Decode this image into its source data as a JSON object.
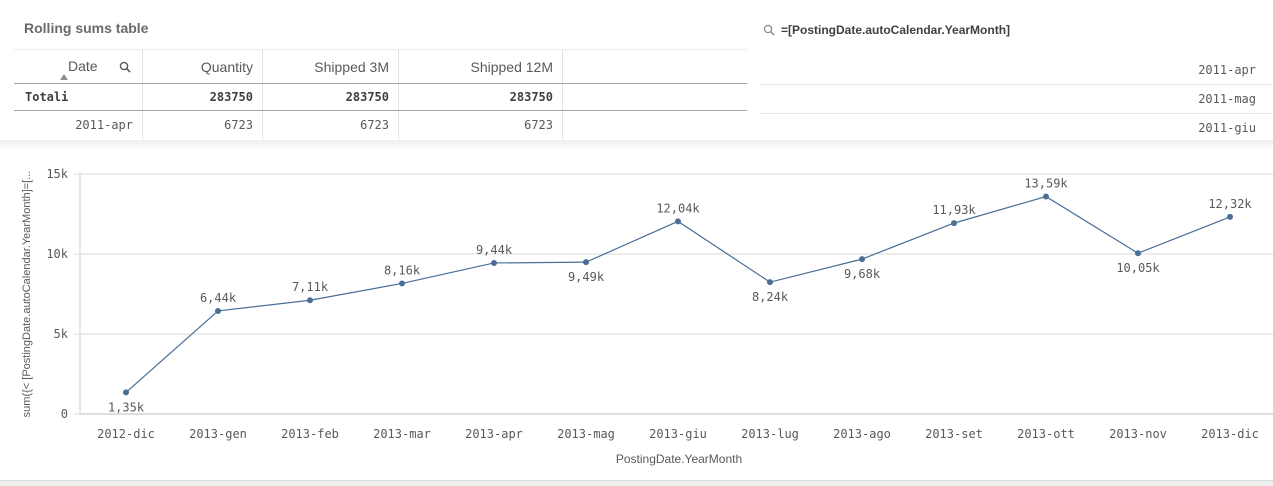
{
  "table": {
    "title": "Rolling sums table",
    "headers": [
      "Date",
      "Quantity",
      "Shipped 3M",
      "Shipped 12M"
    ],
    "totals": [
      "Totali",
      "283750",
      "283750",
      "283750"
    ],
    "row": [
      "2011-apr",
      "6723",
      "6723",
      "6723"
    ]
  },
  "filter": {
    "title": "=[PostingDate.autoCalendar.YearMonth]",
    "items": [
      "2011-apr",
      "2011-mag",
      "2011-giu"
    ]
  },
  "colors": {
    "line": "#4a6e96",
    "grid": "#d9d9d9",
    "text": "#595959"
  },
  "icons": {
    "search": "magnifier-icon",
    "sort": "sort-asc-icon"
  },
  "chart_data": {
    "type": "line",
    "title": "",
    "xlabel": "PostingDate.YearMonth",
    "ylabel": "sum({< [PostingDate.autoCalendar.YearMonth]=[...",
    "ylim": [
      0,
      15000
    ],
    "yticks": [
      0,
      5000,
      10000,
      15000
    ],
    "ytick_labels": [
      "0",
      "5k",
      "10k",
      "15k"
    ],
    "grid": true,
    "categories": [
      "2012-dic",
      "2013-gen",
      "2013-feb",
      "2013-mar",
      "2013-apr",
      "2013-mag",
      "2013-giu",
      "2013-lug",
      "2013-ago",
      "2013-set",
      "2013-ott",
      "2013-nov",
      "2013-dic"
    ],
    "series": [
      {
        "values": [
          1350,
          6440,
          7110,
          8160,
          9440,
          9490,
          12040,
          8240,
          9680,
          11930,
          13590,
          10050,
          12320
        ],
        "labels": [
          "1,35k",
          "6,44k",
          "7,11k",
          "8,16k",
          "9,44k",
          "9,49k",
          "12,04k",
          "8,24k",
          "9,68k",
          "11,93k",
          "13,59k",
          "10,05k",
          "12,32k"
        ],
        "label_pos": [
          "below",
          "above",
          "above",
          "above",
          "above",
          "below",
          "above",
          "below",
          "below",
          "above",
          "above",
          "below",
          "above"
        ]
      }
    ]
  }
}
